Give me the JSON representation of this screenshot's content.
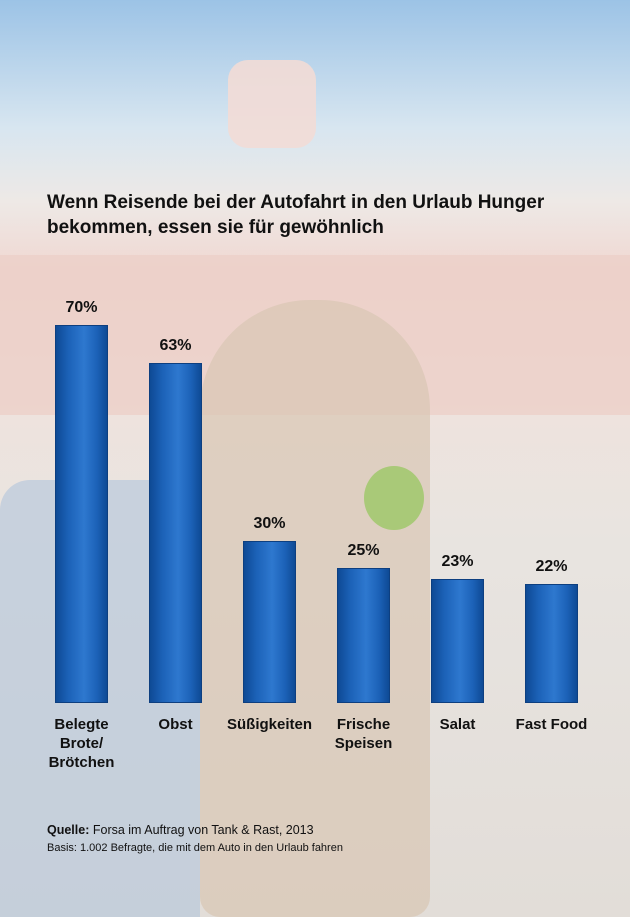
{
  "chart_data": {
    "type": "bar",
    "title": "Wenn Reisende bei der Autofahrt in den Urlaub Hunger bekommen, essen sie für gewöhnlich",
    "categories": [
      "Belegte Brote/ Brötchen",
      "Obst",
      "Süßigkeiten",
      "Frische Speisen",
      "Salat",
      "Fast Food"
    ],
    "values": [
      70,
      63,
      30,
      25,
      23,
      22
    ],
    "value_labels": [
      "70%",
      "63%",
      "30%",
      "25%",
      "23%",
      "22%"
    ],
    "color": "#1c62b8",
    "source_label": "Quelle:",
    "source": "Forsa im Auftrag von Tank & Rast, 2013",
    "basis": "Basis: 1.002 Befragte, die mit dem Auto in den Urlaub fahren"
  }
}
